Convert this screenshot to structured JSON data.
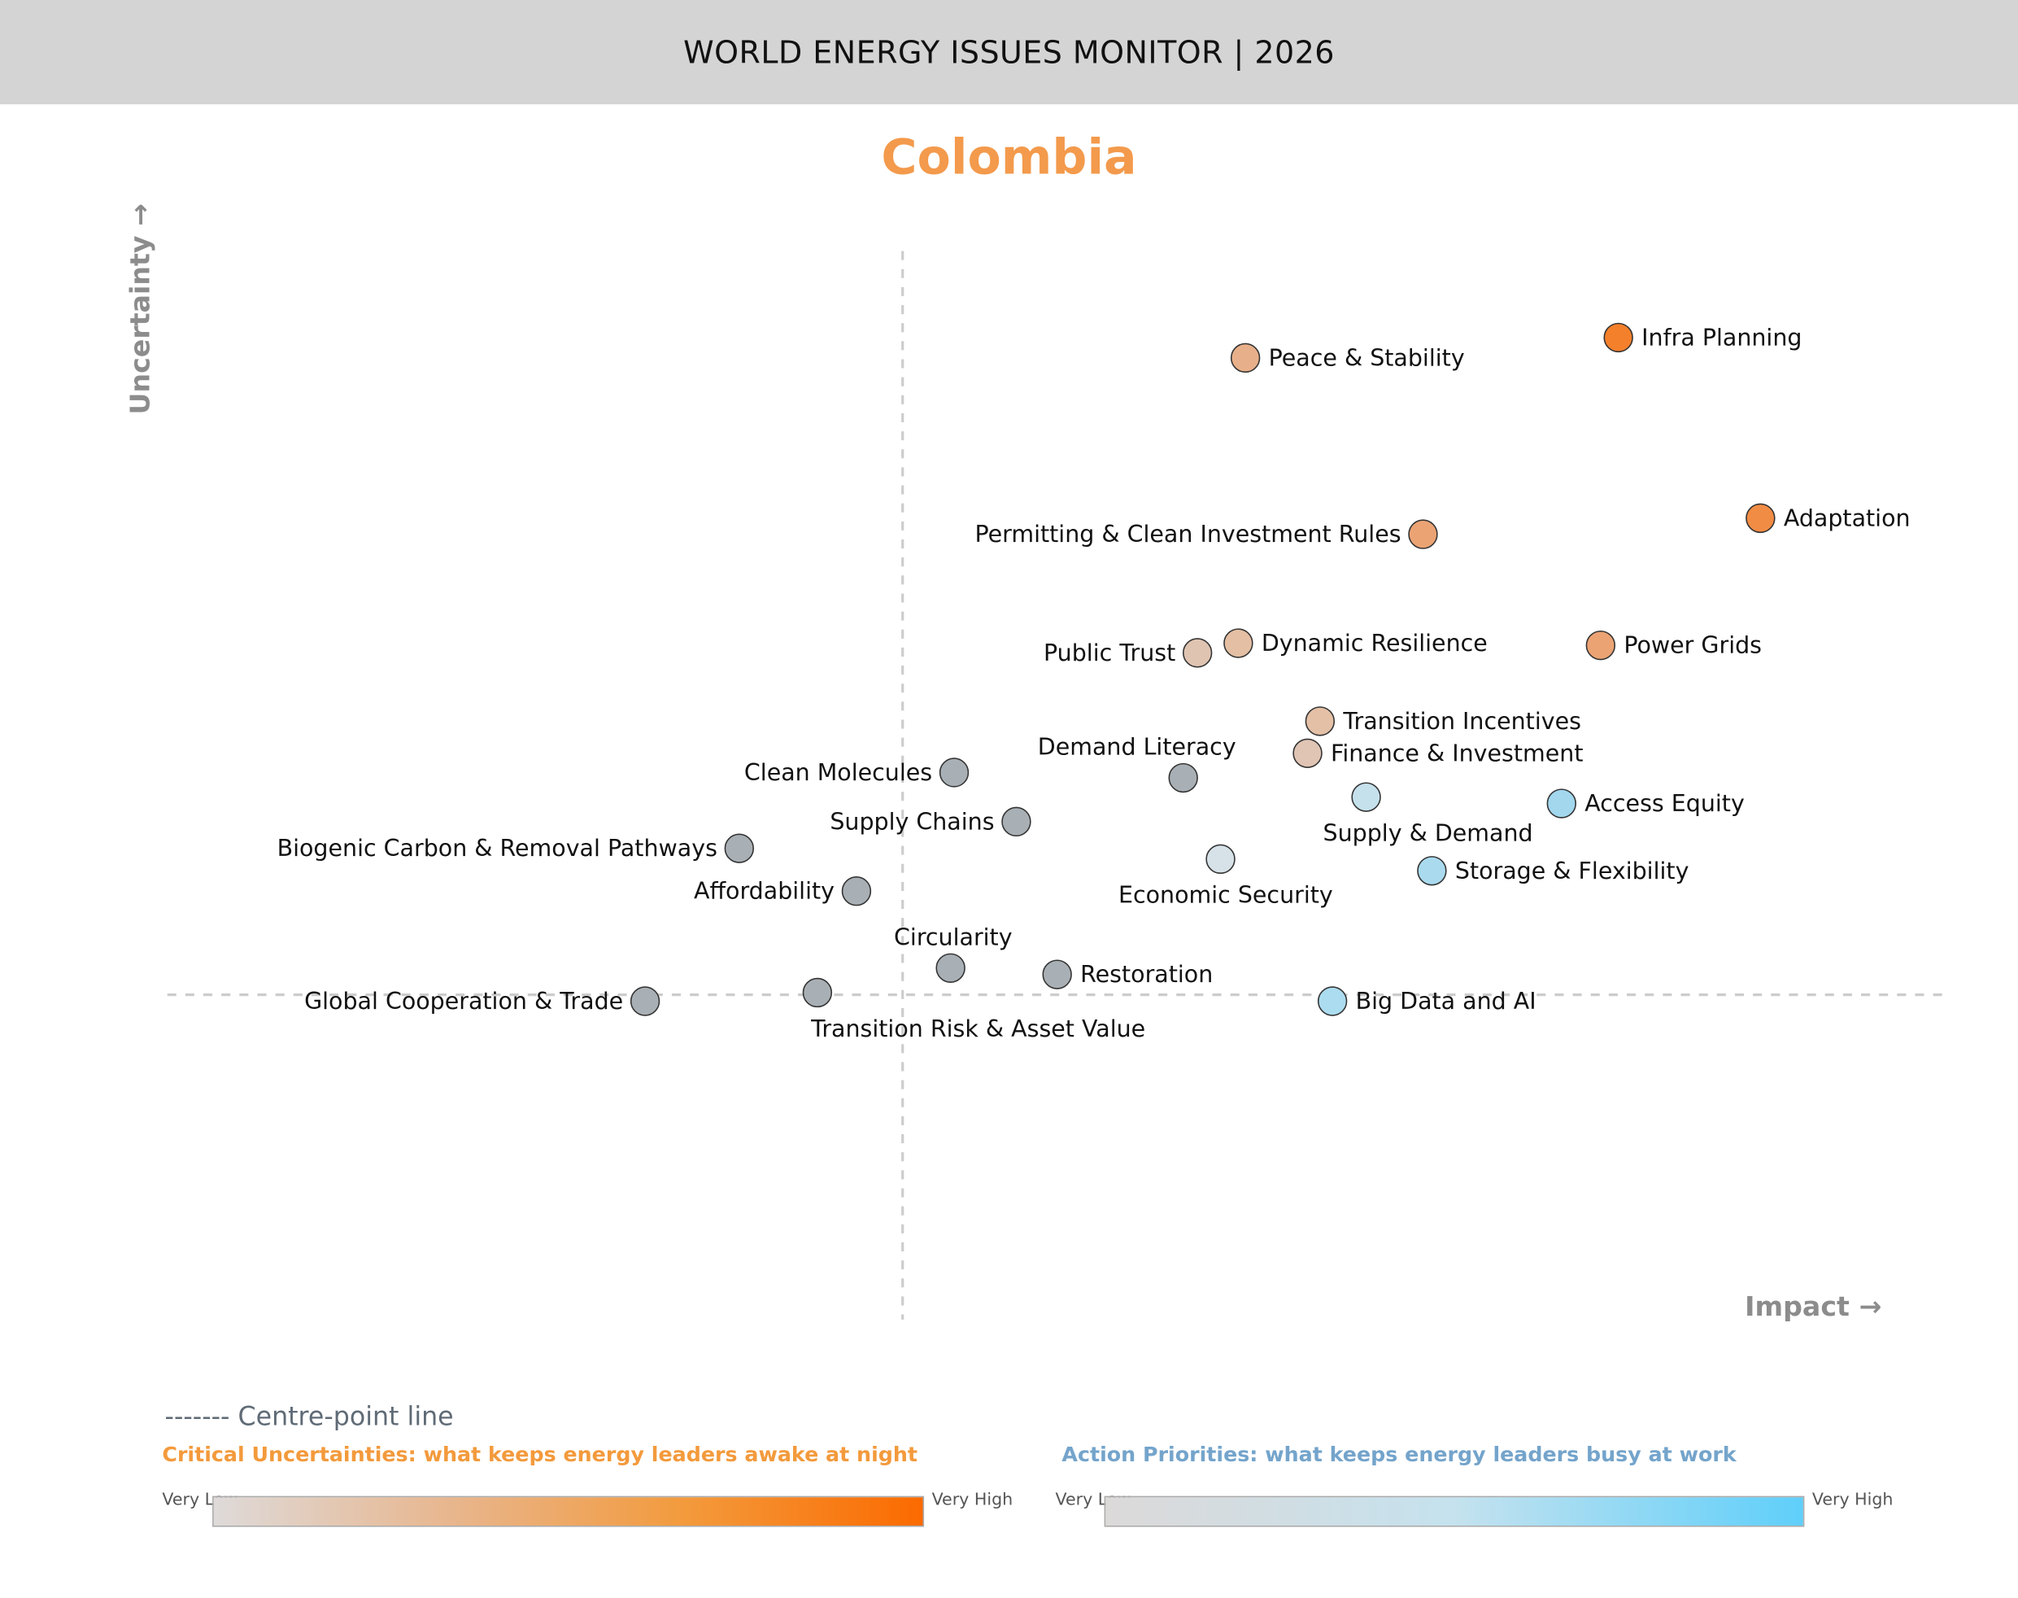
{
  "header": {
    "title": "WORLD ENERGY ISSUES MONITOR | 2026"
  },
  "country": "Colombia",
  "chart_data": {
    "type": "scatter",
    "title": "Colombia",
    "xlabel": "Impact →",
    "ylabel": "Uncertainty →",
    "xlim": [
      0,
      100
    ],
    "ylim": [
      0,
      100
    ],
    "grid": false,
    "centre_point": {
      "x": 41.4,
      "y": 30.4
    },
    "points": [
      {
        "name": "Infra Planning",
        "x": 81.7,
        "y": 91.9,
        "color": "#f5802b",
        "label": "right"
      },
      {
        "name": "Peace & Stability",
        "x": 60.7,
        "y": 90.0,
        "color": "#e8b08a",
        "label": "right"
      },
      {
        "name": "Adaptation",
        "x": 89.7,
        "y": 75.0,
        "color": "#f18c45",
        "label": "right"
      },
      {
        "name": "Permitting & Clean Investment Rules",
        "x": 70.7,
        "y": 73.5,
        "color": "#eba374",
        "label": "left"
      },
      {
        "name": "Public Trust",
        "x": 58.0,
        "y": 62.4,
        "color": "#e0c4b2",
        "label": "left"
      },
      {
        "name": "Dynamic Resilience",
        "x": 60.3,
        "y": 63.3,
        "color": "#e4bfa4",
        "label": "right"
      },
      {
        "name": "Power Grids",
        "x": 80.7,
        "y": 63.1,
        "color": "#eba374",
        "label": "right"
      },
      {
        "name": "Transition Incentives",
        "x": 64.9,
        "y": 56.0,
        "color": "#e4c0a6",
        "label": "right"
      },
      {
        "name": "Finance & Investment",
        "x": 64.2,
        "y": 53.0,
        "color": "#e0c4b4",
        "label": "right"
      },
      {
        "name": "Demand Literacy",
        "x": 57.2,
        "y": 50.7,
        "color": "#a9b0b5",
        "label": "above"
      },
      {
        "name": "Clean Molecules",
        "x": 44.3,
        "y": 51.2,
        "color": "#a9b0b5",
        "label": "left"
      },
      {
        "name": "Supply Chains",
        "x": 47.8,
        "y": 46.6,
        "color": "#a9b0b5",
        "label": "left"
      },
      {
        "name": "Supply & Demand",
        "x": 67.5,
        "y": 48.9,
        "color": "#c5e1ec",
        "label": "below"
      },
      {
        "name": "Access Equity",
        "x": 78.5,
        "y": 48.3,
        "color": "#a2d7ee",
        "label": "right"
      },
      {
        "name": "Biogenic Carbon & Removal Pathways",
        "x": 32.2,
        "y": 44.1,
        "color": "#a9b0b5",
        "label": "left"
      },
      {
        "name": "Economic Security",
        "x": 59.3,
        "y": 43.1,
        "color": "#d6e2e8",
        "label": "below"
      },
      {
        "name": "Storage & Flexibility",
        "x": 71.2,
        "y": 42.0,
        "color": "#a9daee",
        "label": "right"
      },
      {
        "name": "Affordability",
        "x": 38.8,
        "y": 40.1,
        "color": "#a9b0b5",
        "label": "left"
      },
      {
        "name": "Circularity",
        "x": 44.1,
        "y": 32.9,
        "color": "#a9b0b5",
        "label": "above"
      },
      {
        "name": "Restoration",
        "x": 50.1,
        "y": 32.3,
        "color": "#a9b0b5",
        "label": "right"
      },
      {
        "name": "Global Cooperation & Trade",
        "x": 26.9,
        "y": 29.8,
        "color": "#a9b0b5",
        "label": "left"
      },
      {
        "name": "Transition Risk & Asset Value",
        "x": 36.6,
        "y": 30.6,
        "color": "#a9b0b5",
        "label": "below-right"
      },
      {
        "name": "Big Data and AI",
        "x": 65.6,
        "y": 29.8,
        "color": "#acdcef",
        "label": "right"
      }
    ]
  },
  "legend": {
    "centre_line": "------- Centre-point line",
    "uncertainties": {
      "title": "Critical Uncertainties: what keeps energy leaders awake at night",
      "color": "#f39a3c",
      "low": "Very Low",
      "high": "Very High",
      "gradient": [
        "#dedad9",
        "#e8b68e",
        "#f39a3c",
        "#fb6a00"
      ]
    },
    "priorities": {
      "title": "Action Priorities: what keeps energy leaders busy at work",
      "color": "#74a4cb",
      "low": "Very Low",
      "high": "Very High",
      "gradient": [
        "#dcd9d9",
        "#c5e2ee",
        "#5fcffa"
      ]
    }
  }
}
